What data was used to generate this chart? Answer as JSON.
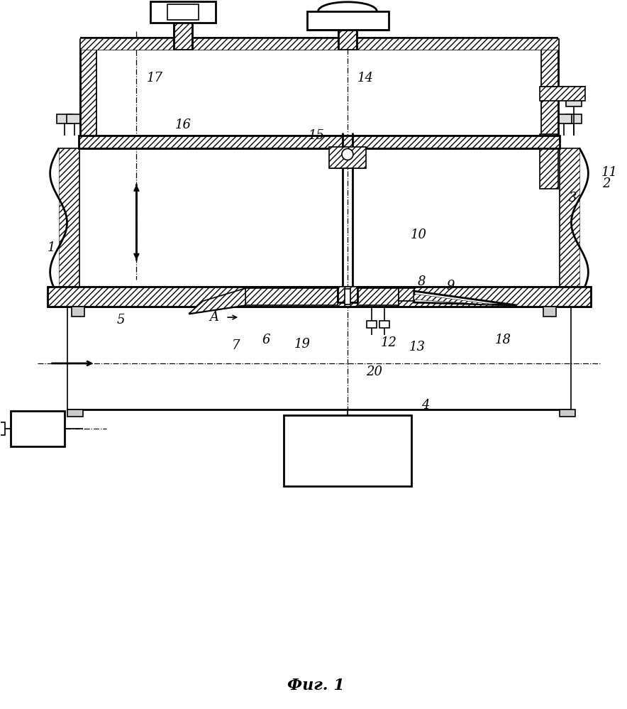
{
  "background": "#ffffff",
  "line_color": "#000000",
  "fig_title": "Фиг. 1",
  "fig_w": 8.84,
  "fig_h": 9.99
}
